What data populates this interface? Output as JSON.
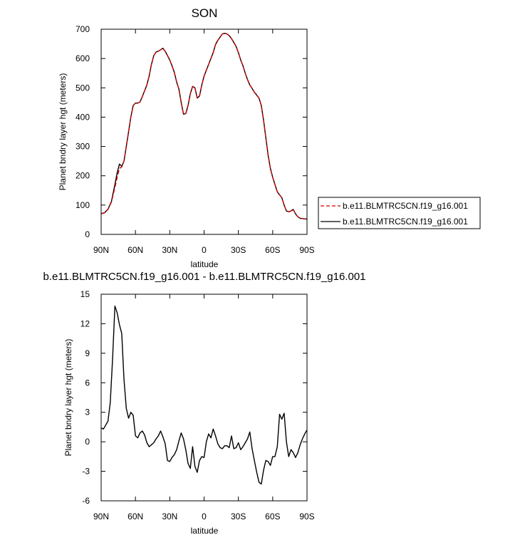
{
  "chart_data": [
    {
      "type": "line",
      "title": "SON",
      "xlabel": "latitude",
      "ylabel": "Planet bndry layer hgt (meters)",
      "xlim": [
        90,
        -90
      ],
      "ylim": [
        0,
        700
      ],
      "x_tick_values": [
        90,
        60,
        30,
        0,
        -30,
        -60,
        -90
      ],
      "x_tick_labels": [
        "90N",
        "60N",
        "30N",
        "0",
        "30S",
        "60S",
        "90S"
      ],
      "y_tick_values": [
        0,
        100,
        200,
        300,
        400,
        500,
        600,
        700
      ],
      "y_tick_labels": [
        "0",
        "100",
        "200",
        "300",
        "400",
        "500",
        "600",
        "700"
      ],
      "legend_position": "right",
      "x": [
        90,
        87,
        84,
        81,
        78,
        76,
        74,
        72,
        70,
        68,
        66,
        64,
        62,
        60,
        58,
        56,
        54,
        52,
        50,
        48,
        46,
        44,
        42,
        40,
        38,
        36,
        34,
        32,
        30,
        28,
        26,
        24,
        22,
        20,
        18,
        16,
        14,
        12,
        10,
        8,
        6,
        4,
        2,
        0,
        -2,
        -4,
        -6,
        -8,
        -10,
        -12,
        -14,
        -16,
        -18,
        -20,
        -22,
        -24,
        -26,
        -28,
        -30,
        -32,
        -34,
        -36,
        -38,
        -40,
        -42,
        -44,
        -46,
        -48,
        -50,
        -52,
        -54,
        -56,
        -58,
        -60,
        -62,
        -64,
        -66,
        -68,
        -70,
        -72,
        -74,
        -76,
        -78,
        -80,
        -82,
        -84,
        -86,
        -88,
        -90
      ],
      "series": [
        {
          "name": "b.e11.BLMTRC5CN.f19_g16.001",
          "color": "#cc0000",
          "dash": "dashed",
          "values": [
            70,
            74,
            85,
            110,
            160,
            195,
            225,
            230,
            250,
            300,
            350,
            400,
            440,
            448,
            448,
            452,
            470,
            490,
            510,
            540,
            580,
            610,
            622,
            625,
            630,
            635,
            625,
            610,
            595,
            575,
            552,
            520,
            495,
            450,
            410,
            412,
            440,
            480,
            505,
            500,
            465,
            472,
            510,
            540,
            560,
            580,
            600,
            620,
            648,
            662,
            673,
            684,
            686,
            684,
            678,
            668,
            655,
            641,
            620,
            595,
            575,
            550,
            528,
            510,
            498,
            485,
            475,
            465,
            440,
            390,
            330,
            270,
            225,
            195,
            170,
            145,
            135,
            125,
            100,
            80,
            77,
            80,
            85,
            70,
            60,
            55,
            54,
            53,
            52
          ]
        },
        {
          "name": "b.e11.BLMTRC5CN.f19_g16.001",
          "color": "#000000",
          "dash": "solid",
          "values": [
            71,
            74,
            86,
            112,
            170,
            210,
            240,
            232,
            250,
            300,
            350,
            400,
            440,
            448,
            448,
            452,
            470,
            490,
            510,
            540,
            580,
            610,
            622,
            625,
            630,
            635,
            625,
            610,
            595,
            575,
            552,
            520,
            495,
            450,
            410,
            412,
            440,
            480,
            505,
            500,
            465,
            472,
            510,
            540,
            560,
            580,
            600,
            620,
            648,
            662,
            673,
            684,
            686,
            684,
            678,
            668,
            655,
            641,
            620,
            595,
            575,
            550,
            528,
            510,
            498,
            485,
            475,
            465,
            440,
            390,
            330,
            270,
            225,
            195,
            170,
            145,
            135,
            125,
            100,
            80,
            77,
            80,
            85,
            70,
            60,
            55,
            54,
            53,
            52
          ]
        }
      ]
    },
    {
      "type": "line",
      "title": "b.e11.BLMTRC5CN.f19_g16.001 - b.e11.BLMTRC5CN.f19_g16.001",
      "xlabel": "latitude",
      "ylabel": "Planet bndry layer hgt (meters)",
      "xlim": [
        90,
        -90
      ],
      "ylim": [
        -6,
        15
      ],
      "x_tick_values": [
        90,
        60,
        30,
        0,
        -30,
        -60,
        -90
      ],
      "x_tick_labels": [
        "90N",
        "60N",
        "30N",
        "0",
        "30S",
        "60S",
        "90S"
      ],
      "y_tick_values": [
        -6,
        -3,
        0,
        3,
        6,
        9,
        12,
        15
      ],
      "y_tick_labels": [
        "-6",
        "-3",
        "0",
        "3",
        "6",
        "9",
        "12",
        "15"
      ],
      "x": [
        90,
        88,
        86,
        84,
        82,
        80,
        78,
        76,
        74,
        72,
        70,
        68,
        66,
        64,
        62,
        60,
        58,
        56,
        54,
        52,
        50,
        48,
        46,
        44,
        42,
        40,
        38,
        36,
        34,
        32,
        30,
        28,
        26,
        24,
        22,
        20,
        18,
        16,
        14,
        12,
        10,
        8,
        6,
        4,
        2,
        0,
        -2,
        -4,
        -6,
        -8,
        -10,
        -12,
        -14,
        -16,
        -18,
        -20,
        -22,
        -24,
        -26,
        -28,
        -30,
        -32,
        -34,
        -36,
        -38,
        -40,
        -42,
        -44,
        -46,
        -48,
        -50,
        -52,
        -54,
        -56,
        -58,
        -60,
        -62,
        -64,
        -66,
        -68,
        -70,
        -72,
        -74,
        -76,
        -78,
        -80,
        -82,
        -84,
        -86,
        -88,
        -90
      ],
      "series": [
        {
          "color": "#000000",
          "dash": "solid",
          "values": [
            1.4,
            1.3,
            1.7,
            2.1,
            4.0,
            8.5,
            13.8,
            13.1,
            11.9,
            11.0,
            6.3,
            3.4,
            2.4,
            3.0,
            2.7,
            0.6,
            0.4,
            0.9,
            1.1,
            0.7,
            -0.1,
            -0.5,
            -0.3,
            -0.1,
            0.3,
            0.6,
            1.1,
            0.5,
            -0.2,
            -1.9,
            -2.0,
            -1.6,
            -1.3,
            -0.8,
            0.1,
            0.9,
            0.3,
            -0.8,
            -2.2,
            -2.7,
            -0.5,
            -2.5,
            -3.1,
            -1.9,
            -1.5,
            -1.6,
            0.0,
            0.8,
            0.4,
            1.3,
            0.6,
            -0.2,
            -0.6,
            -0.7,
            -0.4,
            -0.4,
            -0.6,
            0.6,
            -0.7,
            -0.6,
            -0.1,
            -0.8,
            -0.5,
            -0.1,
            0.3,
            1.0,
            -0.7,
            -1.9,
            -3.1,
            -4.1,
            -4.3,
            -2.9,
            -1.9,
            -2.0,
            -2.4,
            -1.5,
            -1.5,
            -0.5,
            2.8,
            2.3,
            2.9,
            0.0,
            -1.5,
            -0.8,
            -1.1,
            -1.6,
            -1.1,
            -0.3,
            0.3,
            0.8,
            1.2
          ]
        }
      ]
    }
  ]
}
